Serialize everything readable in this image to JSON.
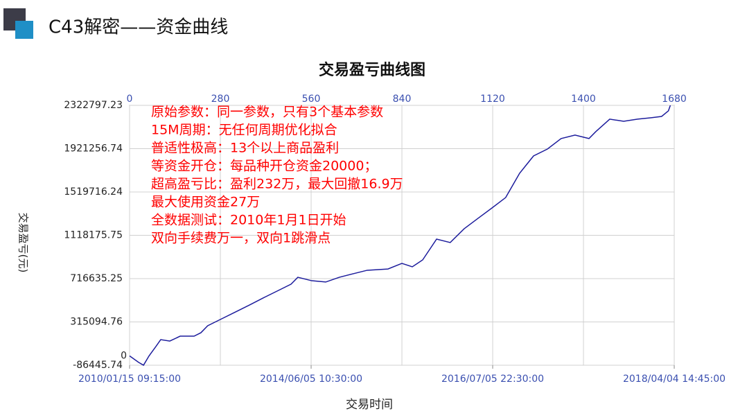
{
  "header": {
    "title": "C43解密——资金曲线"
  },
  "chart_data": {
    "type": "line",
    "title": "交易盈亏曲线图",
    "x_label": "交易时间",
    "y_label": "交易盈亏(元)",
    "xlim": [
      0,
      1680
    ],
    "xticks": [
      0,
      280,
      560,
      840,
      1120,
      1400,
      1680
    ],
    "date_ticks": [
      {
        "value": 0,
        "label": "2010/01/15 09:15:00"
      },
      {
        "value": 560,
        "label": "2014/06/05 10:30:00"
      },
      {
        "value": 1120,
        "label": "2016/07/05 22:30:00"
      },
      {
        "value": 1680,
        "label": "2018/04/04 14:45:00"
      }
    ],
    "ylim": [
      -86445.74,
      2322797.23
    ],
    "yticks": [
      -86445.74,
      315094.76,
      716635.25,
      1118175.75,
      1519716.24,
      1921256.74,
      2322797.23
    ],
    "baseline": 0,
    "grid": true,
    "annotations": [
      "原始参数：同一参数，只有3个基本参数",
      "15M周期：无任何周期优化拟合",
      "普适性极高：13个以上商品盈利",
      "等资金开仓：每品种开仓资金20000；",
      "超高盈亏比：盈利232万，最大回撤16.9万",
      "最大使用资金27万",
      "全数据测试：2010年1月1日开始",
      "双向手续费万一，双向1跳滑点"
    ],
    "annotation_color": "#ff0000",
    "series": [
      {
        "color": "#1c1c9c",
        "x": [
          0,
          28,
          43,
          60,
          81,
          96,
          124,
          156,
          199,
          220,
          241,
          284,
          327,
          370,
          412,
          455,
          498,
          519,
          562,
          605,
          647,
          690,
          733,
          797,
          840,
          872,
          904,
          947,
          989,
          1032,
          1075,
          1118,
          1160,
          1203,
          1246,
          1289,
          1331,
          1374,
          1417,
          1438,
          1481,
          1524,
          1567,
          1609,
          1641,
          1662,
          1668
        ],
        "values": [
          0,
          -60000,
          -86000,
          0,
          87000,
          151000,
          138000,
          183000,
          183000,
          215000,
          280000,
          344000,
          408000,
          472000,
          537000,
          601000,
          665000,
          729000,
          697000,
          685000,
          729000,
          762000,
          794000,
          806000,
          858000,
          826000,
          890000,
          1083000,
          1051000,
          1179000,
          1276000,
          1372000,
          1468000,
          1693000,
          1854000,
          1918000,
          2015000,
          2047000,
          2015000,
          2079000,
          2195000,
          2175000,
          2195000,
          2208000,
          2220000,
          2272000,
          2322797
        ]
      }
    ]
  }
}
